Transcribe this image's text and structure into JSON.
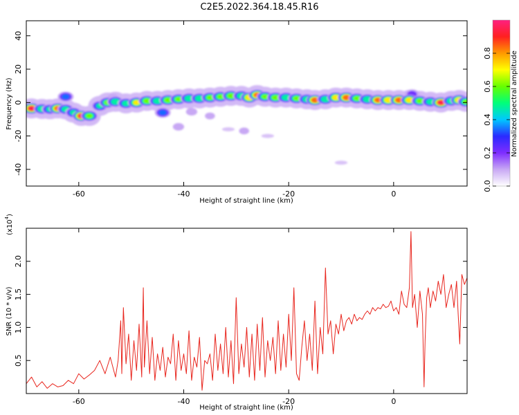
{
  "title": "C2E5.2022.364.18.45.R16",
  "chart_data": [
    {
      "type": "heatmap",
      "xlabel": "Height of straight line (km)",
      "ylabel": "Frequency (Hz)",
      "xlim": [
        -70,
        14
      ],
      "ylim": [
        -50,
        49
      ],
      "x_ticks": [
        -60,
        -40,
        -20,
        0
      ],
      "x_tick_labels": [
        "-60",
        "-40",
        "-20",
        "0"
      ],
      "y_ticks": [
        -40,
        -20,
        0,
        20,
        40
      ],
      "y_tick_labels": [
        "-40",
        "-20",
        "0",
        "20",
        "40"
      ],
      "grid": false,
      "colorbar": {
        "label": "Normalized spectral amplitude",
        "range": [
          0,
          1
        ],
        "ticks": [
          0.0,
          0.2,
          0.4,
          0.6,
          0.8
        ],
        "tick_labels": [
          "0.0",
          "0.2",
          "0.4",
          "0.6",
          "0.8"
        ],
        "colors": [
          "#ffffff",
          "#c8a8f4",
          "#7f2dff",
          "#2a2aff",
          "#00c8ff",
          "#00ff7a",
          "#66ff00",
          "#ffff00",
          "#ff9900",
          "#ff2020",
          "#ff2080"
        ]
      },
      "ridge": [
        {
          "x": -69.0,
          "y": -3.5,
          "a": 0.95
        },
        {
          "x": -67.0,
          "y": -3.8,
          "a": 0.55
        },
        {
          "x": -65.5,
          "y": -4.0,
          "a": 0.45
        },
        {
          "x": -64.0,
          "y": -3.5,
          "a": 0.85
        },
        {
          "x": -62.5,
          "y": -4.0,
          "a": 0.5
        },
        {
          "x": -61.0,
          "y": -6.0,
          "a": 0.45
        },
        {
          "x": -59.5,
          "y": -8.0,
          "a": 0.95
        },
        {
          "x": -58.0,
          "y": -8.0,
          "a": 0.6
        },
        {
          "x": -56.0,
          "y": -2.0,
          "a": 0.45
        },
        {
          "x": -54.5,
          "y": 0.0,
          "a": 0.6
        },
        {
          "x": -53.0,
          "y": 0.5,
          "a": 0.55
        },
        {
          "x": -51.0,
          "y": -0.5,
          "a": 0.5
        },
        {
          "x": -49.0,
          "y": 0.0,
          "a": 0.7
        },
        {
          "x": -47.0,
          "y": 1.0,
          "a": 0.65
        },
        {
          "x": -45.0,
          "y": 1.0,
          "a": 0.55
        },
        {
          "x": -43.0,
          "y": 1.5,
          "a": 0.65
        },
        {
          "x": -41.0,
          "y": 2.0,
          "a": 0.6
        },
        {
          "x": -39.0,
          "y": 2.5,
          "a": 0.55
        },
        {
          "x": -37.0,
          "y": 2.5,
          "a": 0.55
        },
        {
          "x": -35.0,
          "y": 3.0,
          "a": 0.6
        },
        {
          "x": -33.0,
          "y": 3.5,
          "a": 0.6
        },
        {
          "x": -31.0,
          "y": 4.0,
          "a": 0.65
        },
        {
          "x": -29.0,
          "y": 4.0,
          "a": 0.55
        },
        {
          "x": -27.5,
          "y": 3.0,
          "a": 0.8
        },
        {
          "x": -26.0,
          "y": 4.5,
          "a": 0.85
        },
        {
          "x": -24.5,
          "y": 3.5,
          "a": 0.6
        },
        {
          "x": -22.5,
          "y": 3.0,
          "a": 0.65
        },
        {
          "x": -20.5,
          "y": 3.0,
          "a": 0.55
        },
        {
          "x": -18.5,
          "y": 2.5,
          "a": 0.6
        },
        {
          "x": -16.5,
          "y": 2.0,
          "a": 0.55
        },
        {
          "x": -15.0,
          "y": 1.5,
          "a": 0.9
        },
        {
          "x": -13.0,
          "y": 2.0,
          "a": 0.55
        },
        {
          "x": -11.0,
          "y": 3.0,
          "a": 0.75
        },
        {
          "x": -9.0,
          "y": 3.0,
          "a": 0.9
        },
        {
          "x": -7.0,
          "y": 2.5,
          "a": 0.6
        },
        {
          "x": -5.0,
          "y": 2.0,
          "a": 0.55
        },
        {
          "x": -3.0,
          "y": 1.5,
          "a": 0.85
        },
        {
          "x": -1.0,
          "y": 1.5,
          "a": 0.8
        },
        {
          "x": 1.0,
          "y": 1.5,
          "a": 0.9
        },
        {
          "x": 3.0,
          "y": 1.5,
          "a": 0.75
        },
        {
          "x": 5.0,
          "y": 1.0,
          "a": 0.6
        },
        {
          "x": 7.0,
          "y": 0.5,
          "a": 0.5
        },
        {
          "x": 9.0,
          "y": 0.0,
          "a": 0.95
        },
        {
          "x": 11.0,
          "y": 1.0,
          "a": 0.55
        },
        {
          "x": 12.5,
          "y": 1.5,
          "a": 0.8
        },
        {
          "x": 13.8,
          "y": 0.5,
          "a": 0.6
        }
      ],
      "patches": [
        {
          "x": -44.0,
          "y": -6.0,
          "a": 0.35
        },
        {
          "x": -38.5,
          "y": -5.5,
          "a": 0.1
        },
        {
          "x": -41.0,
          "y": -14.5,
          "a": 0.1
        },
        {
          "x": -35.0,
          "y": -8.0,
          "a": 0.08
        },
        {
          "x": -28.5,
          "y": -17.0,
          "a": 0.08
        },
        {
          "x": -31.5,
          "y": -16.0,
          "a": 0.06
        },
        {
          "x": -62.5,
          "y": 3.5,
          "a": 0.35
        },
        {
          "x": -53.5,
          "y": 3.0,
          "a": 0.1
        },
        {
          "x": -10.0,
          "y": -36.0,
          "a": 0.05
        },
        {
          "x": -24.0,
          "y": -20.0,
          "a": 0.04
        },
        {
          "x": 3.5,
          "y": 5.0,
          "a": 0.25
        }
      ]
    },
    {
      "type": "line",
      "xlabel": "Height of straight line (km)",
      "ylabel": "SNR (10 * v/v)",
      "y_scale_label": "(x10",
      "y_scale_exponent": "4",
      "y_scale_close": ")",
      "xlim": [
        -70,
        14
      ],
      "ylim": [
        0,
        2.5
      ],
      "x_ticks": [
        -60,
        -40,
        -20,
        0
      ],
      "x_tick_labels": [
        "-60",
        "-40",
        "-20",
        "0"
      ],
      "y_ticks": [
        0.5,
        1.0,
        1.5,
        2.0
      ],
      "y_tick_labels": [
        "0.5",
        "1.0",
        "1.5",
        "2.0"
      ],
      "grid": false,
      "series_color": "#e8251d",
      "series": [
        {
          "x": [
            -70.0,
            -69.0,
            -68.0,
            -67.0,
            -66.0,
            -65.0,
            -64.0,
            -63.0,
            -62.0,
            -61.0,
            -60.0,
            -59.0,
            -58.0,
            -57.0,
            -56.0,
            -55.0,
            -54.0,
            -53.0,
            -52.5,
            -52.0,
            -51.8,
            -51.5,
            -51.0,
            -50.5,
            -50.0,
            -49.5,
            -49.0,
            -48.5,
            -48.0,
            -47.7,
            -47.5,
            -47.0,
            -46.5,
            -46.0,
            -45.5,
            -45.0,
            -44.5,
            -44.0,
            -43.5,
            -43.0,
            -42.5,
            -42.0,
            -41.5,
            -41.0,
            -40.5,
            -40.0,
            -39.5,
            -39.0,
            -38.5,
            -38.0,
            -37.5,
            -37.0,
            -36.5,
            -36.0,
            -35.5,
            -35.0,
            -34.5,
            -34.0,
            -33.5,
            -33.0,
            -32.5,
            -32.0,
            -31.5,
            -31.0,
            -30.5,
            -30.0,
            -29.5,
            -29.0,
            -28.5,
            -28.0,
            -27.5,
            -27.0,
            -26.5,
            -26.0,
            -25.5,
            -25.0,
            -24.5,
            -24.0,
            -23.5,
            -23.0,
            -22.5,
            -22.0,
            -21.5,
            -21.0,
            -20.5,
            -20.0,
            -19.5,
            -19.0,
            -18.5,
            -18.0,
            -17.5,
            -17.0,
            -16.5,
            -16.0,
            -15.5,
            -15.0,
            -14.5,
            -14.0,
            -13.5,
            -13.0,
            -12.5,
            -12.0,
            -11.5,
            -11.0,
            -10.5,
            -10.0,
            -9.5,
            -9.0,
            -8.5,
            -8.0,
            -7.5,
            -7.0,
            -6.5,
            -6.0,
            -5.5,
            -5.0,
            -4.5,
            -4.0,
            -3.5,
            -3.0,
            -2.5,
            -2.0,
            -1.5,
            -1.0,
            -0.5,
            0.0,
            0.5,
            1.0,
            1.5,
            2.0,
            2.5,
            3.0,
            3.3,
            3.6,
            4.0,
            4.5,
            5.0,
            5.5,
            5.8,
            6.0,
            6.3,
            6.6,
            7.0,
            7.5,
            8.0,
            8.5,
            9.0,
            9.5,
            10.0,
            10.5,
            11.0,
            11.5,
            12.0,
            12.3,
            12.6,
            13.0,
            13.5,
            14.0
          ],
          "y": [
            0.15,
            0.25,
            0.1,
            0.18,
            0.08,
            0.15,
            0.1,
            0.12,
            0.2,
            0.15,
            0.3,
            0.22,
            0.28,
            0.35,
            0.5,
            0.3,
            0.55,
            0.25,
            0.5,
            1.1,
            0.3,
            1.3,
            0.45,
            0.9,
            0.2,
            0.8,
            0.35,
            1.05,
            0.25,
            1.6,
            0.4,
            1.1,
            0.3,
            0.85,
            0.2,
            0.6,
            0.35,
            0.7,
            0.25,
            0.55,
            0.45,
            0.9,
            0.2,
            0.8,
            0.35,
            0.6,
            0.3,
            0.95,
            0.2,
            0.55,
            0.4,
            0.85,
            0.05,
            0.5,
            0.45,
            0.6,
            0.2,
            0.9,
            0.35,
            0.75,
            0.3,
            1.0,
            0.25,
            0.8,
            0.15,
            1.45,
            0.3,
            0.75,
            0.4,
            1.0,
            0.25,
            0.9,
            0.2,
            1.05,
            0.35,
            1.15,
            0.25,
            0.8,
            0.5,
            0.85,
            0.3,
            1.1,
            0.35,
            0.9,
            0.4,
            1.2,
            0.5,
            1.6,
            0.3,
            0.2,
            0.7,
            1.1,
            0.5,
            0.9,
            0.35,
            1.4,
            0.3,
            1.0,
            0.6,
            1.9,
            0.9,
            1.1,
            0.6,
            1.05,
            0.9,
            1.2,
            0.95,
            1.1,
            1.15,
            1.05,
            1.2,
            1.1,
            1.15,
            1.12,
            1.2,
            1.25,
            1.2,
            1.3,
            1.25,
            1.3,
            1.28,
            1.35,
            1.3,
            1.32,
            1.4,
            1.25,
            1.3,
            1.2,
            1.55,
            1.35,
            1.3,
            1.6,
            2.45,
            1.3,
            1.5,
            1.0,
            1.55,
            1.2,
            0.1,
            0.8,
            1.45,
            1.6,
            1.3,
            1.55,
            1.4,
            1.7,
            1.5,
            1.8,
            1.3,
            1.5,
            1.65,
            1.3,
            1.7,
            1.2,
            0.75,
            1.8,
            1.65,
            1.75
          ]
        }
      ]
    }
  ]
}
